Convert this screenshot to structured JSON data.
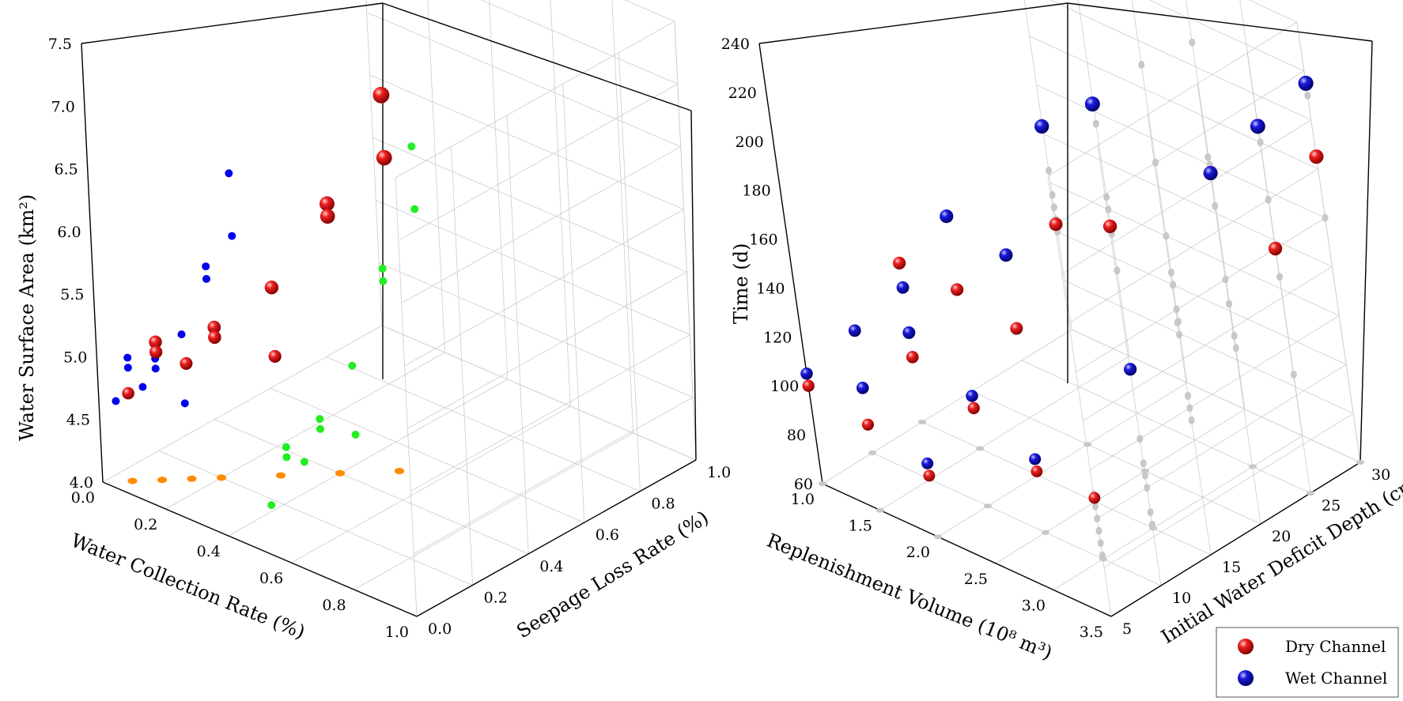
{
  "colors": {
    "dry": "#dd1111",
    "wet": "#1111dd",
    "green": "#22ee22",
    "orange": "#ff8c00",
    "blue_proj": "#0000ee",
    "gray": "#c8c8c8"
  },
  "chart_data": [
    {
      "type": "scatter",
      "title": "",
      "xlabel": "Water Collection Rate (%)",
      "ylabel": "Seepage Loss Rate (%)",
      "zlabel": "Water Surface Area (km²)",
      "xlim": [
        0,
        1
      ],
      "ylim": [
        0,
        1
      ],
      "zlim": [
        4,
        7.5
      ],
      "x_ticks": [
        "0.0",
        "0.2",
        "0.4",
        "0.6",
        "0.8",
        "1.0"
      ],
      "y_ticks": [
        "0.0",
        "0.2",
        "0.4",
        "0.6",
        "0.8",
        "1.0"
      ],
      "z_ticks": [
        "4.0",
        "4.5",
        "5.0",
        "5.5",
        "6.0",
        "6.5",
        "7.0",
        "7.5"
      ],
      "series": [
        {
          "points": [
            {
              "x": 0.5,
              "y": 0.5,
              "z": 7.0
            },
            {
              "x": 0.5,
              "y": 0.5,
              "z": 6.5
            },
            {
              "x": 0.4,
              "y": 0.4,
              "z": 6.15
            },
            {
              "x": 0.4,
              "y": 0.4,
              "z": 6.05
            },
            {
              "x": 0.3,
              "y": 0.3,
              "z": 5.5
            },
            {
              "x": 0.2,
              "y": 0.2,
              "z": 5.2
            },
            {
              "x": 0.2,
              "y": 0.2,
              "z": 5.12
            },
            {
              "x": 0.1,
              "y": 0.1,
              "z": 5.1
            },
            {
              "x": 0.1,
              "y": 0.1,
              "z": 5.02
            },
            {
              "x": 0.3,
              "y": 0.3,
              "z": 4.95
            },
            {
              "x": 0.15,
              "y": 0.15,
              "z": 4.92
            },
            {
              "x": 0.05,
              "y": 0.05,
              "z": 4.7
            }
          ]
        }
      ]
    },
    {
      "type": "scatter",
      "title": "",
      "xlabel": "Replenishment Volume (10⁸ m³)",
      "ylabel": "Initial Water Deficit Depth (cm)",
      "zlabel": "Time (d)",
      "xlim": [
        1,
        3.5
      ],
      "ylim": [
        5,
        30
      ],
      "zlim": [
        60,
        240
      ],
      "x_ticks": [
        "1.0",
        "1.5",
        "2.0",
        "2.5",
        "3.0",
        "3.5"
      ],
      "y_ticks": [
        "5",
        "10",
        "15",
        "20",
        "25",
        "30"
      ],
      "z_ticks": [
        "60",
        "80",
        "100",
        "120",
        "140",
        "160",
        "180",
        "200",
        "220",
        "240"
      ],
      "series": [
        {
          "name": "Dry Channel",
          "points": [
            {
              "x": 1.0,
              "y": 5,
              "z": 100
            },
            {
              "x": 1.0,
              "y": 10,
              "z": 110
            },
            {
              "x": 1.0,
              "y": 15,
              "z": 125
            },
            {
              "x": 1.5,
              "y": 5,
              "z": 95
            },
            {
              "x": 1.5,
              "y": 10,
              "z": 110
            },
            {
              "x": 1.5,
              "y": 15,
              "z": 125
            },
            {
              "x": 2.0,
              "y": 5,
              "z": 85
            },
            {
              "x": 2.0,
              "y": 10,
              "z": 100
            },
            {
              "x": 2.0,
              "y": 15,
              "z": 120
            },
            {
              "x": 2.0,
              "y": 20,
              "z": 150
            },
            {
              "x": 2.5,
              "y": 10,
              "z": 85
            },
            {
              "x": 2.5,
              "y": 20,
              "z": 160
            },
            {
              "x": 3.0,
              "y": 10,
              "z": 85
            },
            {
              "x": 3.0,
              "y": 25,
              "z": 180
            },
            {
              "x": 3.5,
              "y": 25,
              "z": 160
            },
            {
              "x": 3.5,
              "y": 30,
              "z": 185
            }
          ]
        },
        {
          "name": "Wet Channel",
          "points": [
            {
              "x": 1.0,
              "y": 5,
              "z": 105
            },
            {
              "x": 1.0,
              "y": 10,
              "z": 110
            },
            {
              "x": 1.0,
              "y": 15,
              "z": 115
            },
            {
              "x": 1.5,
              "y": 5,
              "z": 110
            },
            {
              "x": 1.5,
              "y": 10,
              "z": 120
            },
            {
              "x": 1.5,
              "y": 15,
              "z": 155
            },
            {
              "x": 2.0,
              "y": 5,
              "z": 90
            },
            {
              "x": 2.0,
              "y": 10,
              "z": 105
            },
            {
              "x": 2.0,
              "y": 15,
              "z": 150
            },
            {
              "x": 2.0,
              "y": 20,
              "z": 190
            },
            {
              "x": 2.5,
              "y": 10,
              "z": 90
            },
            {
              "x": 2.5,
              "y": 20,
              "z": 210
            },
            {
              "x": 3.0,
              "y": 15,
              "z": 125
            },
            {
              "x": 3.0,
              "y": 25,
              "z": 180
            },
            {
              "x": 3.5,
              "y": 25,
              "z": 210
            },
            {
              "x": 3.5,
              "y": 30,
              "z": 215
            }
          ]
        }
      ],
      "legend": {
        "placement": "bottom-right"
      }
    }
  ]
}
